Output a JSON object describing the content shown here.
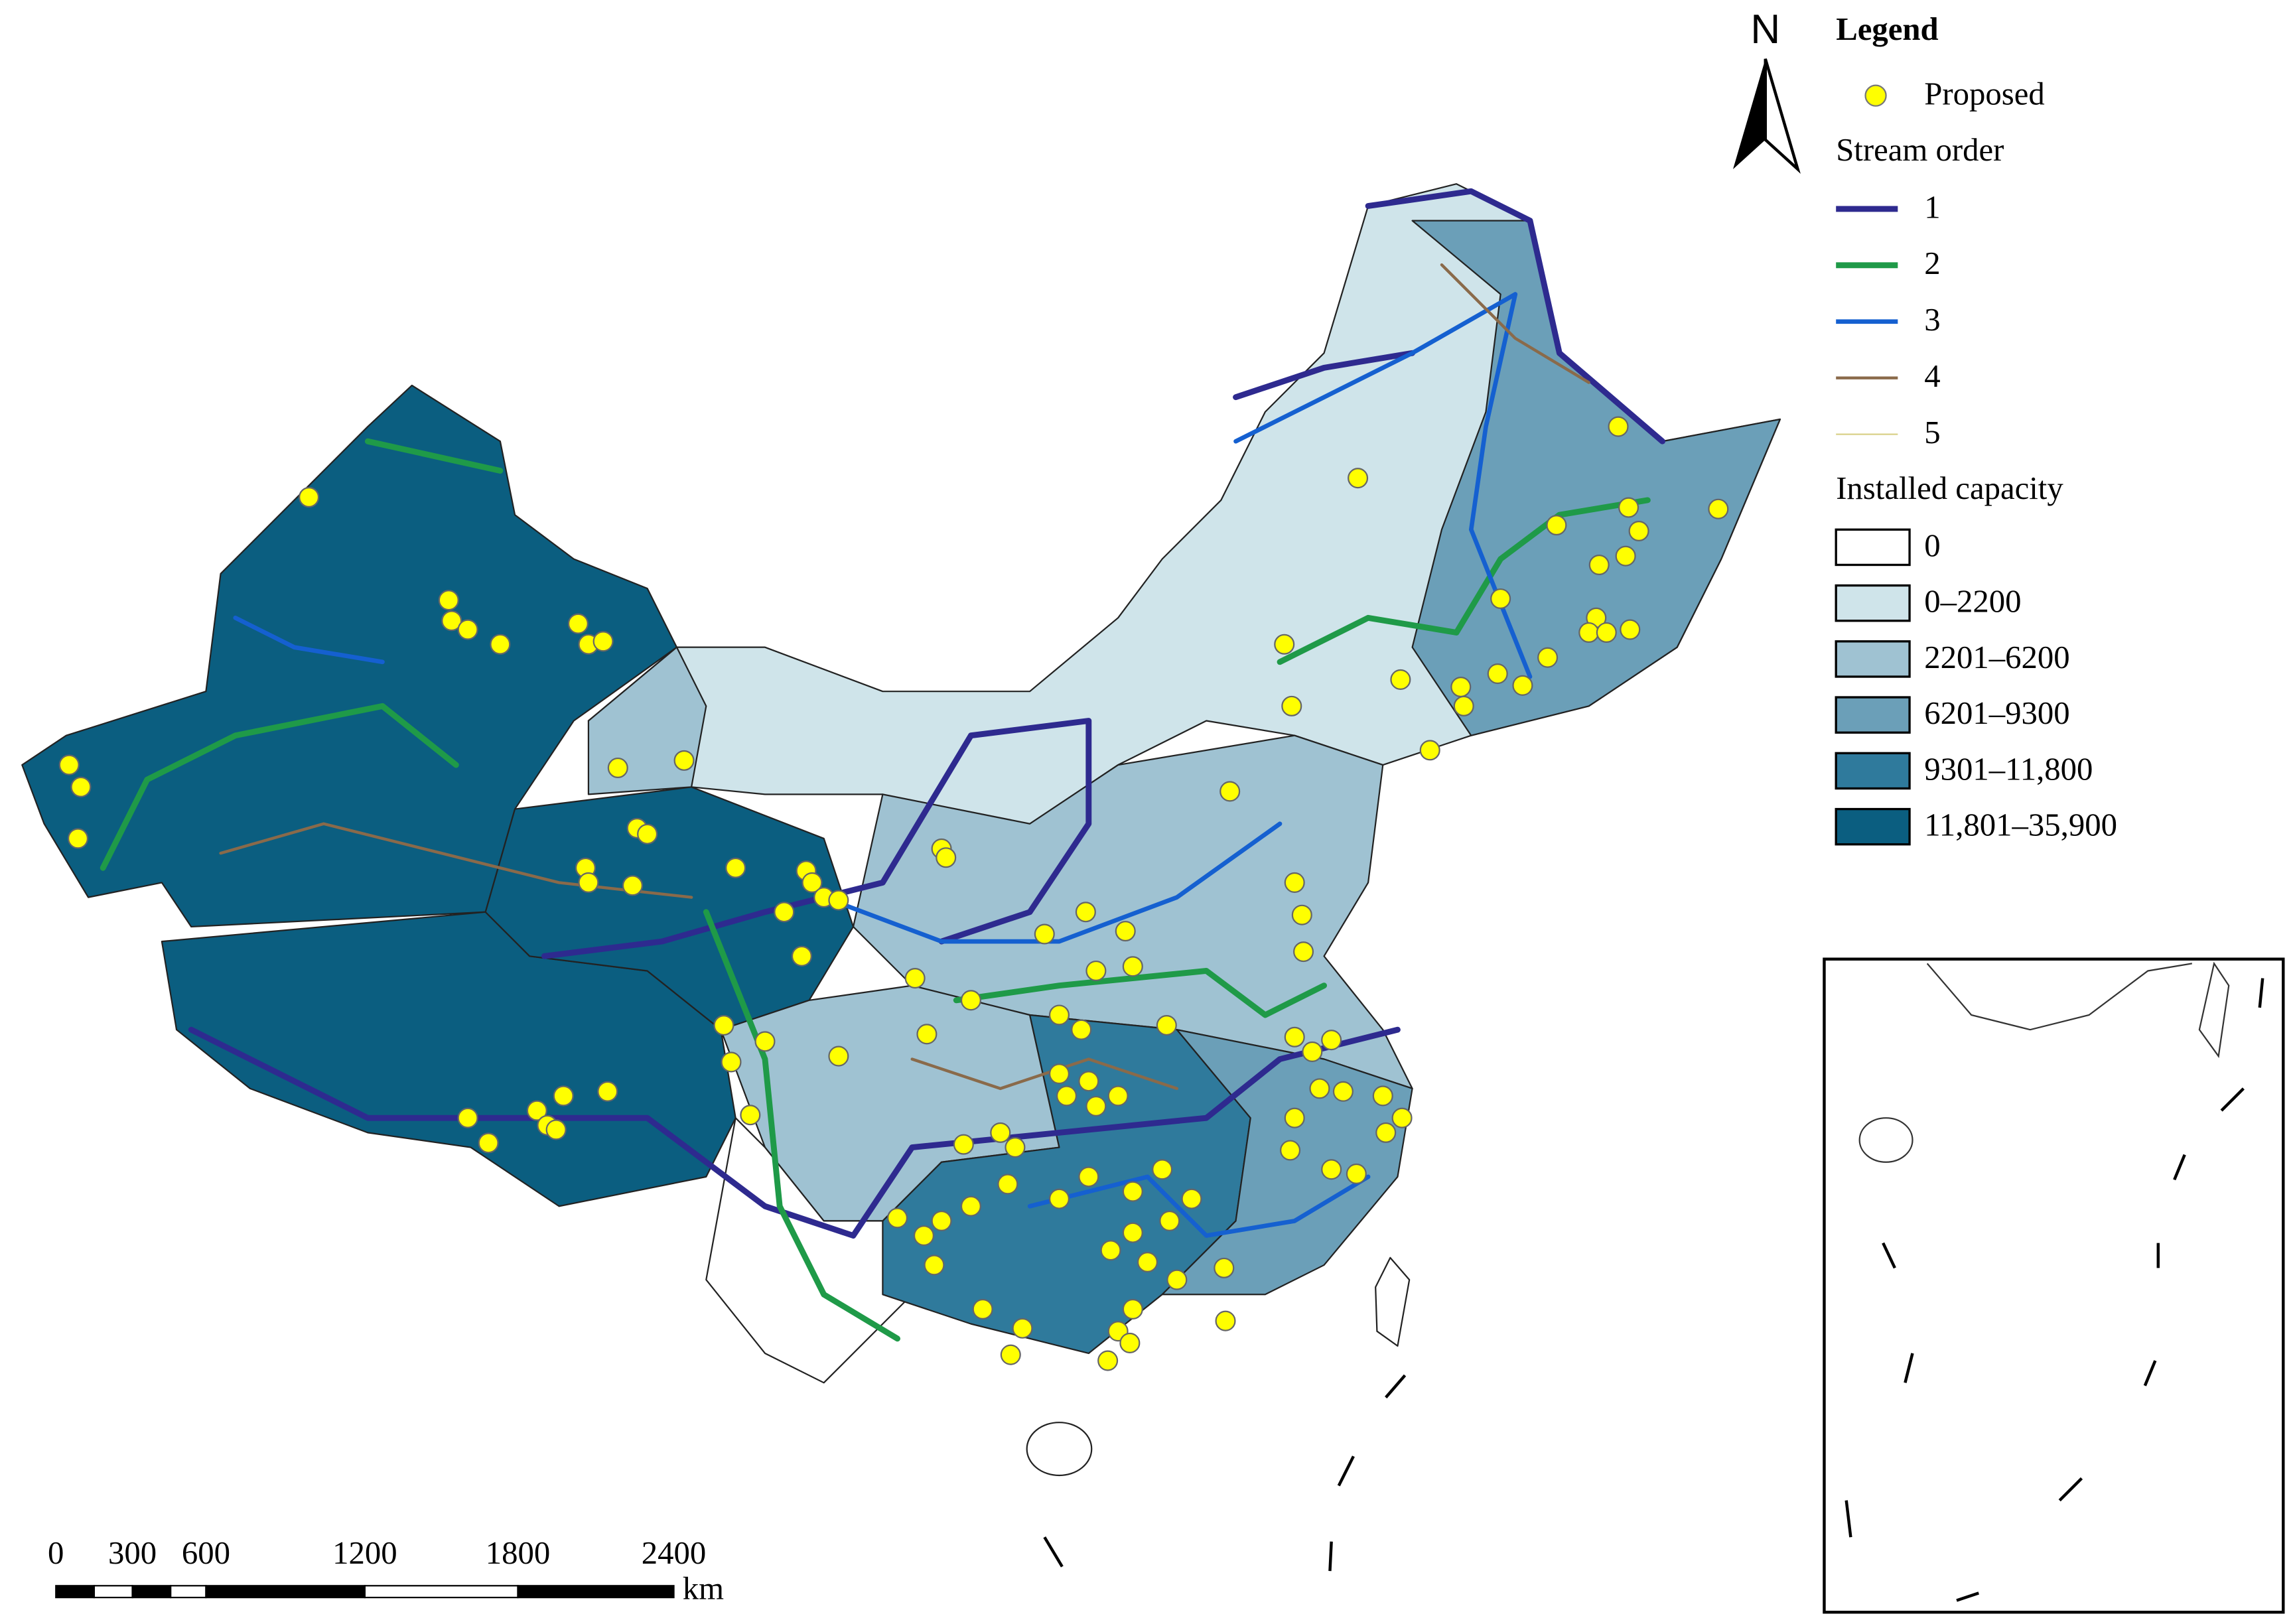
{
  "north_arrow": "N",
  "legend": {
    "title": "Legend",
    "proposed": "Proposed",
    "stream_order": {
      "title": "Stream order",
      "items": [
        "1",
        "2",
        "3",
        "4",
        "5"
      ]
    },
    "installed_capacity": {
      "title": "Installed capacity",
      "items": [
        "0",
        "0–2200",
        "2201–6200",
        "6201–9300",
        "9301–11,800",
        "11,801–35,900"
      ]
    }
  },
  "scale_bar": {
    "labels": [
      "0",
      "300",
      "600",
      "1200",
      "1800",
      "2400"
    ],
    "unit": "km"
  }
}
